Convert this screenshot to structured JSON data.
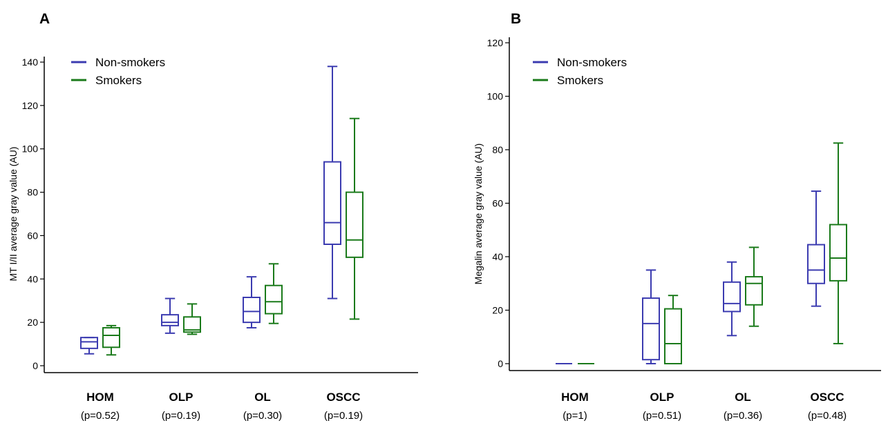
{
  "chart_data": [
    {
      "panel": "A",
      "type": "box",
      "ylabel": "MT I/II  average gray value (AU)",
      "ylim": [
        0,
        140
      ],
      "yticks": [
        0,
        20,
        40,
        60,
        80,
        100,
        120,
        140
      ],
      "categories": [
        "HOM",
        "OLP",
        "OL",
        "OSCC"
      ],
      "pvalues": [
        "(p=0.52)",
        "(p=0.19)",
        "(p=0.30)",
        "(p=0.19)"
      ],
      "legend": [
        "Non-smokers",
        "Smokers"
      ],
      "legend_position": "top-left",
      "series": [
        {
          "name": "Non-smokers",
          "color": "#3b3bb0",
          "boxes": [
            {
              "min": 5.5,
              "q1": 8,
              "median": 11,
              "q3": 13,
              "max": 13
            },
            {
              "min": 15,
              "q1": 18.5,
              "median": 20,
              "q3": 23.5,
              "max": 31
            },
            {
              "min": 17.5,
              "q1": 20,
              "median": 25,
              "q3": 31.5,
              "max": 41
            },
            {
              "min": 31,
              "q1": 56,
              "median": 66,
              "q3": 94,
              "max": 138
            }
          ]
        },
        {
          "name": "Smokers",
          "color": "#1a7a1a",
          "boxes": [
            {
              "min": 5,
              "q1": 8.5,
              "median": 14,
              "q3": 17.5,
              "max": 18.5
            },
            {
              "min": 14.5,
              "q1": 15.5,
              "median": 16.5,
              "q3": 22.5,
              "max": 28.5
            },
            {
              "min": 19.5,
              "q1": 24,
              "median": 29.5,
              "q3": 37,
              "max": 47
            },
            {
              "min": 21.5,
              "q1": 50,
              "median": 58,
              "q3": 80,
              "max": 114
            }
          ]
        }
      ]
    },
    {
      "panel": "B",
      "type": "box",
      "ylabel": "Megalin average gray value (AU)",
      "ylim": [
        0,
        120
      ],
      "yticks": [
        0,
        20,
        40,
        60,
        80,
        100,
        120
      ],
      "categories": [
        "HOM",
        "OLP",
        "OL",
        "OSCC"
      ],
      "pvalues": [
        "(p=1)",
        "(p=0.51)",
        "(p=0.36)",
        "(p=0.48)"
      ],
      "legend": [
        "Non-smokers",
        "Smokers"
      ],
      "legend_position": "top-left",
      "series": [
        {
          "name": "Non-smokers",
          "color": "#3b3bb0",
          "boxes": [
            {
              "min": 0,
              "q1": 0,
              "median": 0,
              "q3": 0,
              "max": 0
            },
            {
              "min": 0,
              "q1": 1.5,
              "median": 15,
              "q3": 24.5,
              "max": 35
            },
            {
              "min": 10.5,
              "q1": 19.5,
              "median": 22.5,
              "q3": 30.5,
              "max": 38
            },
            {
              "min": 21.5,
              "q1": 30,
              "median": 35,
              "q3": 44.5,
              "max": 64.5
            }
          ]
        },
        {
          "name": "Smokers",
          "color": "#1a7a1a",
          "boxes": [
            {
              "min": 0,
              "q1": 0,
              "median": 0,
              "q3": 0,
              "max": 0
            },
            {
              "min": 0,
              "q1": 0,
              "median": 7.5,
              "q3": 20.5,
              "max": 25.5
            },
            {
              "min": 14,
              "q1": 22,
              "median": 30,
              "q3": 32.5,
              "max": 43.5
            },
            {
              "min": 7.5,
              "q1": 31,
              "median": 39.5,
              "q3": 52,
              "max": 82.5
            }
          ]
        }
      ]
    }
  ]
}
